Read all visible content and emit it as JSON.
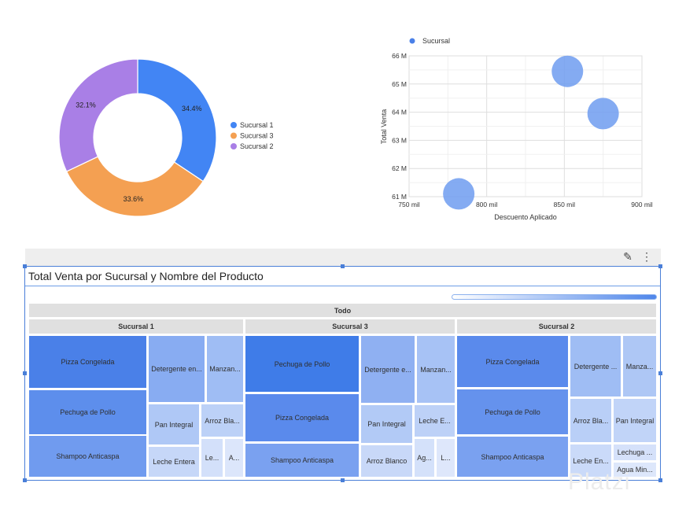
{
  "chart_data": [
    {
      "type": "pie",
      "subtype": "donut",
      "slices": [
        {
          "label": "Sucursal 1",
          "value": 34.4,
          "value_label": "34.4%",
          "color": "#4285f4"
        },
        {
          "label": "Sucursal 3",
          "value": 33.6,
          "value_label": "33.6%",
          "color": "#f4a052"
        },
        {
          "label": "Sucursal 2",
          "value": 32.1,
          "value_label": "32.1%",
          "color": "#a97fe6"
        }
      ],
      "legend_position": "right"
    },
    {
      "type": "scatter",
      "subtype": "bubble",
      "legend": "Sucursal",
      "color": "#6f9cf0",
      "xlabel": "Descuento Aplicado",
      "ylabel": "Total Venta",
      "xlim": [
        750000,
        900000
      ],
      "ylim": [
        61000000,
        66000000
      ],
      "xticks": [
        {
          "v": 750000,
          "label": "750 mil"
        },
        {
          "v": 800000,
          "label": "800 mil"
        },
        {
          "v": 850000,
          "label": "850 mil"
        },
        {
          "v": 900000,
          "label": "900 mil"
        }
      ],
      "yticks": [
        {
          "v": 61000000,
          "label": "61 M"
        },
        {
          "v": 62000000,
          "label": "62 M"
        },
        {
          "v": 63000000,
          "label": "63 M"
        },
        {
          "v": 64000000,
          "label": "64 M"
        },
        {
          "v": 65000000,
          "label": "65 M"
        },
        {
          "v": 66000000,
          "label": "66 M"
        }
      ],
      "points": [
        {
          "x": 782000,
          "y": 61100000
        },
        {
          "x": 852000,
          "y": 65450000
        },
        {
          "x": 875000,
          "y": 63950000
        }
      ],
      "grid": true
    },
    {
      "type": "treemap",
      "title": "Total Venta por Sucursal y Nombre del Producto",
      "root_label": "Todo",
      "groups": [
        {
          "name": "Sucursal 1",
          "items": [
            "Pizza Congelada",
            "Pechuga de Pollo",
            "Shampoo Anticaspa",
            "Detergente en...",
            "Manzan...",
            "Pan Integral",
            "Arroz Bla...",
            "Leche Entera",
            "Le...",
            "A..."
          ]
        },
        {
          "name": "Sucursal 3",
          "items": [
            "Pechuga de Pollo",
            "Pizza Congelada",
            "Shampoo Anticaspa",
            "Detergente e...",
            "Manzan...",
            "Pan Integral",
            "Leche E...",
            "Arroz Blanco",
            "Ag...",
            "L..."
          ]
        },
        {
          "name": "Sucursal 2",
          "items": [
            "Pizza Congelada",
            "Pechuga de Pollo",
            "Shampoo Anticaspa",
            "Detergente ...",
            "Manza...",
            "Arroz Bla...",
            "Pan Integral",
            "Leche En...",
            "Lechuga ...",
            "Agua Min..."
          ]
        }
      ]
    }
  ],
  "toolbar": {
    "edit_icon": "pencil-icon",
    "more_icon": "more-vert-icon"
  },
  "watermark": "Platzi"
}
